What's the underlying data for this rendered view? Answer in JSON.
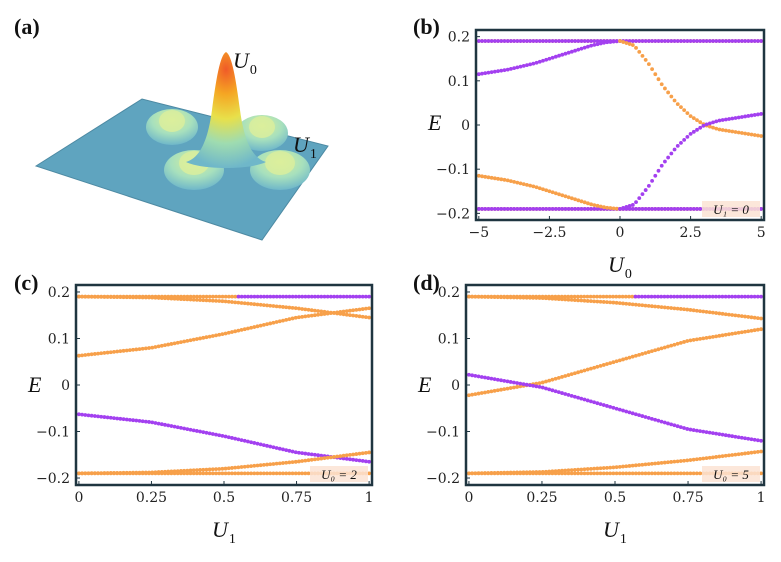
{
  "panels": {
    "a": "(a)",
    "b": "(b)",
    "c": "(c)",
    "d": "(d)"
  },
  "colors": {
    "orange": "#f7a04a",
    "purple": "#a340f0",
    "frame": "#1f3540",
    "surface": "#5fa4bf"
  },
  "illustration": {
    "label_u0": "U",
    "label_u0_sub": "0",
    "label_u1": "U",
    "label_u1_sub": "1"
  },
  "chart_data": [
    {
      "id": "b",
      "type": "scatter",
      "xlabel": "U",
      "xlabel_sub": "0",
      "ylabel": "E",
      "xlim": [
        -5,
        5
      ],
      "ylim": [
        -0.2,
        0.2
      ],
      "xticks": [
        -5,
        -2.5,
        0,
        2.5,
        5
      ],
      "xtick_labels": [
        "−5",
        "−2.5",
        "0",
        "2.5",
        "5"
      ],
      "yticks": [
        0.2,
        0.1,
        0,
        -0.1,
        -0.2
      ],
      "ytick_labels": [
        "0.2",
        "0.1",
        "0",
        "−0.1",
        "−0.2"
      ],
      "annotation": "U₁ = 0",
      "series": [
        {
          "name": "orange-upper-flat",
          "color": "orange",
          "x": [
            -5,
            5
          ],
          "y": [
            0.19,
            0.19
          ]
        },
        {
          "name": "orange-lower-flat",
          "color": "orange",
          "x": [
            -5,
            5
          ],
          "y": [
            -0.19,
            -0.19
          ]
        },
        {
          "name": "purple-upper-flat",
          "color": "purple",
          "x": [
            -5,
            5
          ],
          "y": [
            0.19,
            0.19
          ]
        },
        {
          "name": "purple-lower-flat",
          "color": "purple",
          "x": [
            -5,
            5
          ],
          "y": [
            -0.19,
            -0.19
          ]
        },
        {
          "name": "purple-rising-left",
          "color": "purple",
          "x": [
            -5,
            -4,
            -3,
            -2,
            -1,
            -0.5,
            0
          ],
          "y": [
            0.115,
            0.125,
            0.14,
            0.16,
            0.18,
            0.187,
            0.19
          ]
        },
        {
          "name": "orange-falling-left",
          "color": "orange",
          "x": [
            -5,
            -4,
            -3,
            -2,
            -1,
            -0.5,
            0
          ],
          "y": [
            -0.115,
            -0.125,
            -0.14,
            -0.16,
            -0.18,
            -0.187,
            -0.19
          ]
        },
        {
          "name": "orange-falling-right",
          "color": "orange",
          "x": [
            0,
            0.5,
            1,
            1.5,
            2,
            2.5,
            3,
            3.5,
            4,
            4.5,
            5
          ],
          "y": [
            0.19,
            0.18,
            0.14,
            0.09,
            0.05,
            0.02,
            0.0,
            -0.01,
            -0.015,
            -0.02,
            -0.025
          ]
        },
        {
          "name": "purple-rising-right",
          "color": "purple",
          "x": [
            0,
            0.5,
            1,
            1.5,
            2,
            2.5,
            3,
            3.5,
            4,
            4.5,
            5
          ],
          "y": [
            -0.19,
            -0.18,
            -0.14,
            -0.09,
            -0.05,
            -0.02,
            0.0,
            0.01,
            0.015,
            0.02,
            0.025
          ]
        }
      ]
    },
    {
      "id": "c",
      "type": "scatter",
      "xlabel": "U",
      "xlabel_sub": "1",
      "ylabel": "E",
      "xlim": [
        0,
        1
      ],
      "ylim": [
        -0.2,
        0.2
      ],
      "xticks": [
        0,
        0.25,
        0.5,
        0.75,
        1
      ],
      "xtick_labels": [
        "0",
        "0.25",
        "0.5",
        "0.75",
        "1"
      ],
      "yticks": [
        0.2,
        0.1,
        0,
        -0.1,
        -0.2
      ],
      "ytick_labels": [
        "0.2",
        "0.1",
        "0",
        "−0.1",
        "−0.2"
      ],
      "annotation": "U₀ = 2",
      "series": [
        {
          "name": "orange-top-flat",
          "color": "orange",
          "x": [
            0,
            0.55
          ],
          "y": [
            0.19,
            0.19
          ]
        },
        {
          "name": "purple-top-flat",
          "color": "purple",
          "x": [
            0.55,
            1
          ],
          "y": [
            0.19,
            0.19
          ]
        },
        {
          "name": "orange-top-falling",
          "color": "orange",
          "x": [
            0,
            0.25,
            0.5,
            0.75,
            1
          ],
          "y": [
            0.19,
            0.188,
            0.18,
            0.165,
            0.145
          ]
        },
        {
          "name": "orange-rising",
          "color": "orange",
          "x": [
            0,
            0.25,
            0.5,
            0.75,
            1
          ],
          "y": [
            0.063,
            0.08,
            0.11,
            0.145,
            0.165
          ]
        },
        {
          "name": "purple-falling",
          "color": "purple",
          "x": [
            0,
            0.25,
            0.5,
            0.75,
            1
          ],
          "y": [
            -0.063,
            -0.08,
            -0.11,
            -0.145,
            -0.165
          ]
        },
        {
          "name": "orange-bottom-rising",
          "color": "orange",
          "x": [
            0,
            0.25,
            0.5,
            0.75,
            1
          ],
          "y": [
            -0.19,
            -0.188,
            -0.18,
            -0.165,
            -0.145
          ]
        },
        {
          "name": "orange-bottom-flat",
          "color": "orange",
          "x": [
            0,
            1
          ],
          "y": [
            -0.19,
            -0.19
          ]
        }
      ]
    },
    {
      "id": "d",
      "type": "scatter",
      "xlabel": "U",
      "xlabel_sub": "1",
      "ylabel": "E",
      "xlim": [
        0,
        1
      ],
      "ylim": [
        -0.2,
        0.2
      ],
      "xticks": [
        0,
        0.25,
        0.5,
        0.75,
        1
      ],
      "xtick_labels": [
        "0",
        "0.25",
        "0.5",
        "0.75",
        "1"
      ],
      "yticks": [
        0.2,
        0.1,
        0,
        -0.1,
        -0.2
      ],
      "ytick_labels": [
        "0.2",
        "0.1",
        "0",
        "−0.1",
        "−0.2"
      ],
      "annotation": "U₀ = 5",
      "series": [
        {
          "name": "orange-top-flat",
          "color": "orange",
          "x": [
            0,
            0.57
          ],
          "y": [
            0.19,
            0.19
          ]
        },
        {
          "name": "purple-top-flat",
          "color": "purple",
          "x": [
            0.57,
            1
          ],
          "y": [
            0.19,
            0.19
          ]
        },
        {
          "name": "orange-top-falling",
          "color": "orange",
          "x": [
            0,
            0.25,
            0.5,
            0.75,
            1
          ],
          "y": [
            0.19,
            0.187,
            0.177,
            0.162,
            0.143
          ]
        },
        {
          "name": "orange-rising",
          "color": "orange",
          "x": [
            0,
            0.25,
            0.5,
            0.75,
            1
          ],
          "y": [
            -0.022,
            0.005,
            0.05,
            0.095,
            0.12
          ]
        },
        {
          "name": "purple-falling",
          "color": "purple",
          "x": [
            0,
            0.25,
            0.5,
            0.75,
            1
          ],
          "y": [
            0.022,
            -0.005,
            -0.05,
            -0.095,
            -0.12
          ]
        },
        {
          "name": "orange-bottom-rising",
          "color": "orange",
          "x": [
            0,
            0.25,
            0.5,
            0.75,
            1
          ],
          "y": [
            -0.19,
            -0.187,
            -0.177,
            -0.162,
            -0.143
          ]
        },
        {
          "name": "orange-bottom-flat",
          "color": "orange",
          "x": [
            0,
            1
          ],
          "y": [
            -0.19,
            -0.19
          ]
        }
      ]
    }
  ]
}
